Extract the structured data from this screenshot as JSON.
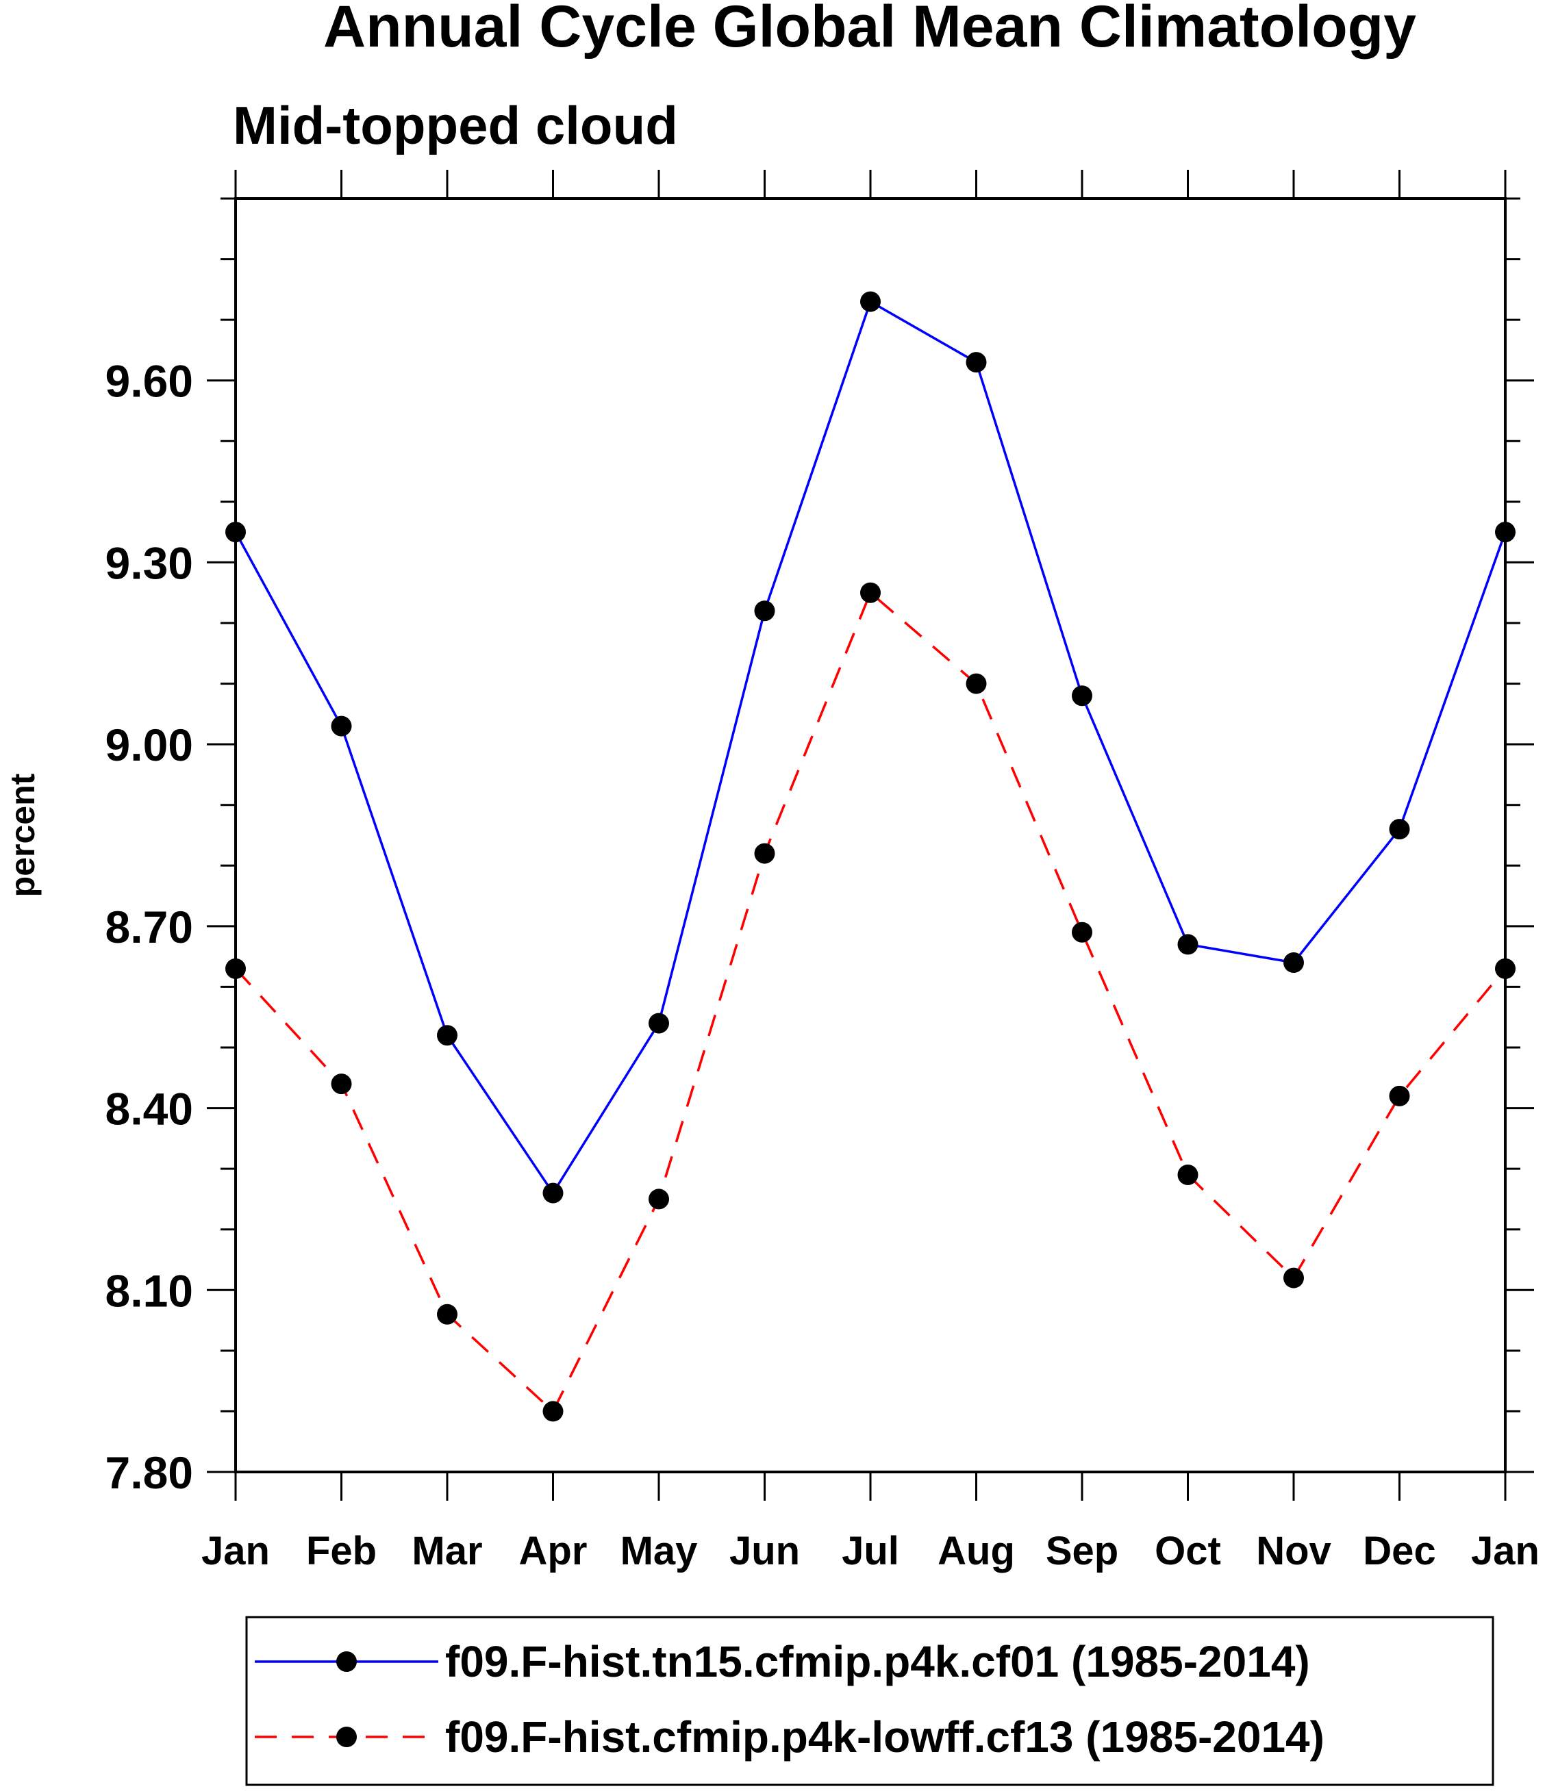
{
  "chart_data": {
    "type": "line",
    "title": "Annual Cycle Global Mean Climatology",
    "subtitle": "Mid-topped cloud",
    "xlabel": "",
    "ylabel": "percent",
    "categories": [
      "Jan",
      "Feb",
      "Mar",
      "Apr",
      "May",
      "Jun",
      "Jul",
      "Aug",
      "Sep",
      "Oct",
      "Nov",
      "Dec",
      "Jan"
    ],
    "ylim": [
      7.8,
      9.9
    ],
    "yticks": [
      7.8,
      8.1,
      8.4,
      8.7,
      9.0,
      9.3,
      9.6
    ],
    "ytick_labels": [
      "7.80",
      "8.10",
      "8.40",
      "8.70",
      "9.00",
      "9.30",
      "9.60"
    ],
    "y_minor_step": 0.1,
    "grid": false,
    "legend_position": "bottom",
    "series": [
      {
        "name": "f09.F-hist.tn15.cfmip.p4k.cf01 (1985-2014)",
        "color": "#0000ff",
        "line_style": "solid",
        "marker": "filled-circle",
        "values": [
          9.35,
          9.03,
          8.52,
          8.26,
          8.54,
          9.22,
          9.73,
          9.63,
          9.08,
          8.67,
          8.64,
          8.86,
          9.35
        ]
      },
      {
        "name": "f09.F-hist.cfmip.p4k-lowff.cf13 (1985-2014)",
        "color": "#ff0000",
        "line_style": "dashed",
        "marker": "filled-circle",
        "values": [
          8.63,
          8.44,
          8.06,
          7.9,
          8.25,
          8.82,
          9.25,
          9.1,
          8.69,
          8.29,
          8.12,
          8.42,
          8.63
        ]
      }
    ]
  }
}
